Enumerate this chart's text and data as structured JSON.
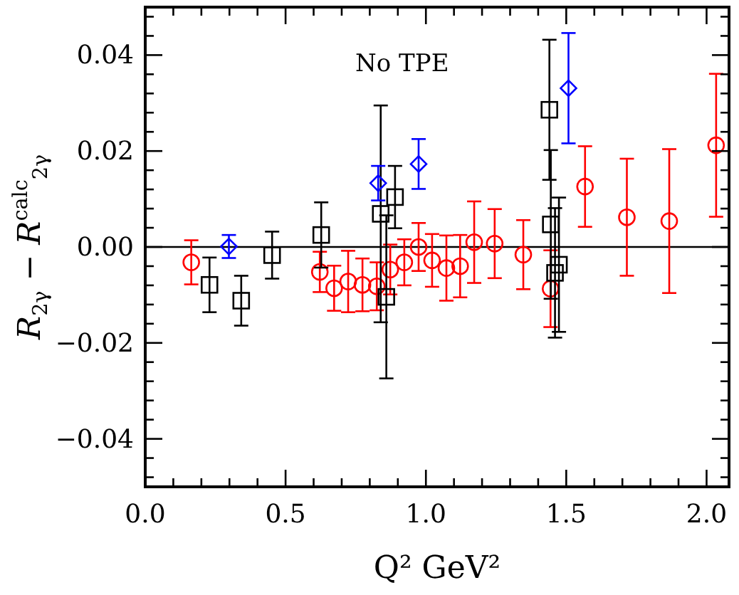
{
  "chart_data": {
    "type": "scatter",
    "xlabel": "Q² GeV²",
    "ylabel": "R$_{2γ}$ − R$^{calc}$$_{2γ}$",
    "annotations": [
      "No TPE"
    ],
    "xlim": [
      0,
      2.08
    ],
    "ylim": [
      -0.05,
      0.05
    ],
    "xticks": [
      {
        "value": 0,
        "label": "0.0"
      },
      {
        "value": 0.1,
        "label": null
      },
      {
        "value": 0.2,
        "label": null
      },
      {
        "value": 0.3,
        "label": null
      },
      {
        "value": 0.4,
        "label": null
      },
      0.5,
      {
        "value": 0.6,
        "label": null
      },
      {
        "value": 0.7,
        "label": null
      },
      {
        "value": 0.8,
        "label": null
      },
      {
        "value": 0.9,
        "label": null
      },
      {
        "value": 1,
        "label": "1.0"
      },
      {
        "value": 1.1,
        "label": null
      },
      {
        "value": 1.2,
        "label": null
      },
      {
        "value": 1.3,
        "label": null
      },
      {
        "value": 1.4,
        "label": null
      },
      1.5,
      {
        "value": 1.6,
        "label": null
      },
      {
        "value": 1.7,
        "label": null
      },
      {
        "value": 1.8,
        "label": null
      },
      {
        "value": 1.9,
        "label": null
      },
      {
        "value": 2,
        "label": "2.0"
      }
    ],
    "yticks": [
      {
        "value": -0.048,
        "label": null
      },
      {
        "value": -0.044,
        "label": null
      },
      {
        "value": -0.04,
        "label": "−0.04"
      },
      {
        "value": -0.036,
        "label": null
      },
      {
        "value": -0.032,
        "label": null
      },
      {
        "value": -0.028,
        "label": null
      },
      {
        "value": -0.024,
        "label": null
      },
      {
        "value": -0.02,
        "label": "−0.02"
      },
      {
        "value": -0.016,
        "label": null
      },
      {
        "value": -0.012,
        "label": null
      },
      {
        "value": -0.008,
        "label": null
      },
      {
        "value": -0.004,
        "label": null
      },
      {
        "value": 0,
        "label": "0.00"
      },
      {
        "value": 0.004,
        "label": null
      },
      {
        "value": 0.008,
        "label": null
      },
      {
        "value": 0.012,
        "label": null
      },
      {
        "value": 0.016,
        "label": null
      },
      {
        "value": 0.02,
        "label": "0.02"
      },
      {
        "value": 0.024,
        "label": null
      },
      {
        "value": 0.028,
        "label": null
      },
      {
        "value": 0.032,
        "label": null
      },
      {
        "value": 0.036,
        "label": null
      },
      {
        "value": 0.04,
        "label": "0.04"
      },
      {
        "value": 0.044,
        "label": null
      },
      {
        "value": 0.048,
        "label": null
      }
    ],
    "grid": false,
    "ref_lines": [
      {
        "axis": "y",
        "value": 0,
        "color": "#000000"
      }
    ],
    "series": [
      {
        "color": "#ff0000",
        "marker": "circle",
        "x": [
          0.164,
          0.622,
          0.673,
          0.723,
          0.774,
          0.825,
          0.873,
          0.923,
          0.974,
          1.022,
          1.073,
          1.122,
          1.172,
          1.245,
          1.347,
          1.444,
          1.567,
          1.716,
          1.867,
          2.034
        ],
        "values": [
          -0.0032,
          -0.0052,
          -0.0086,
          -0.0072,
          -0.0079,
          -0.0082,
          -0.0047,
          -0.0032,
          0.0,
          -0.0028,
          -0.0044,
          -0.004,
          0.001,
          0.0007,
          -0.0016,
          -0.0087,
          0.0126,
          0.0062,
          0.0054,
          0.0212
        ],
        "errors": [
          0.0046,
          0.0042,
          0.0047,
          0.0064,
          0.0055,
          0.005,
          0.0052,
          0.0048,
          0.005,
          0.0055,
          0.0068,
          0.0065,
          0.0085,
          0.0072,
          0.0072,
          0.008,
          0.0084,
          0.0122,
          0.015,
          0.0149
        ]
      },
      {
        "color": "#000000",
        "marker": "square",
        "x": [
          0.229,
          0.342,
          0.452,
          0.627,
          0.839,
          0.89,
          0.859,
          1.44,
          1.445,
          1.474,
          1.46
        ],
        "values": [
          -0.0079,
          -0.0112,
          -0.0017,
          0.0025,
          0.0069,
          0.0104,
          -0.0104,
          0.0286,
          0.0047,
          -0.0037,
          -0.0054
        ],
        "errors": [
          0.0057,
          0.0052,
          0.0049,
          0.0068,
          0.0226,
          0.0065,
          0.017,
          0.0146,
          0.0155,
          0.014,
          0.0135
        ]
      },
      {
        "color": "#0000ff",
        "marker": "diamond",
        "x": [
          0.298,
          0.83,
          0.974,
          1.508
        ],
        "values": [
          0.0001,
          0.0133,
          0.0173,
          0.0331
        ],
        "errors": [
          0.0024,
          0.0036,
          0.0052,
          0.0115
        ]
      }
    ]
  }
}
